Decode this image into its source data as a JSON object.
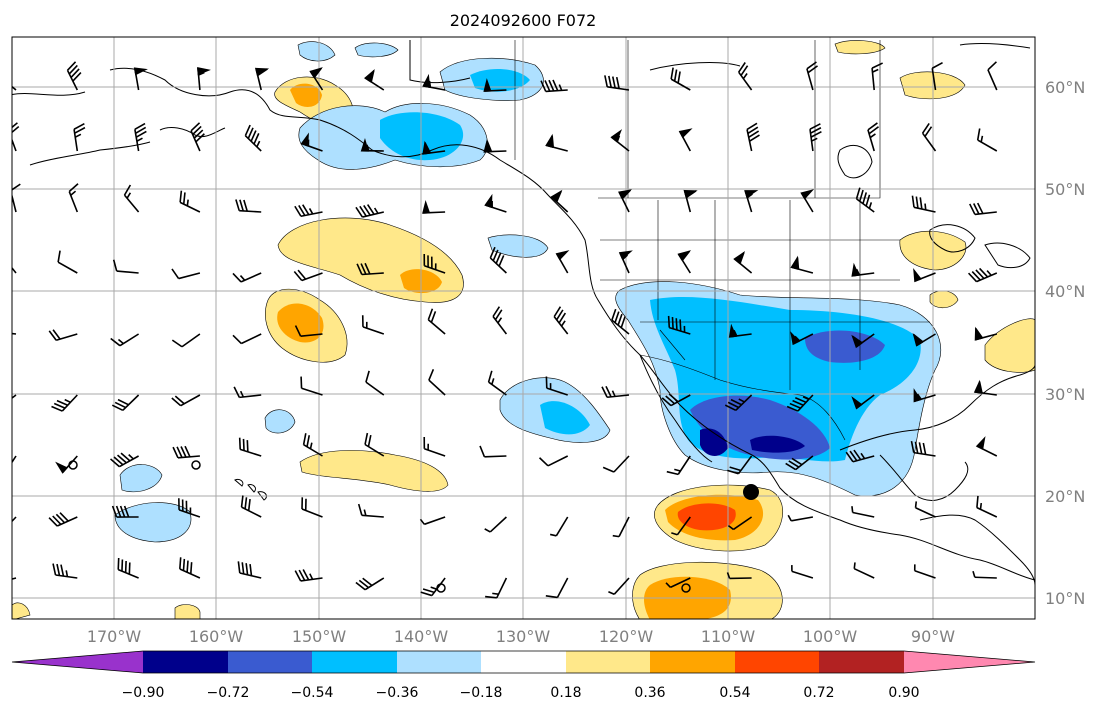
{
  "title": "2024092600 F072",
  "lat_labels": [
    "60°N",
    "50°N",
    "40°N",
    "30°N",
    "20°N",
    "10°N"
  ],
  "lon_labels": [
    "170°W",
    "160°W",
    "150°W",
    "140°W",
    "130°W",
    "120°W",
    "110°W",
    "100°W",
    "90°W"
  ],
  "colorbar": {
    "tick_labels": [
      "−0.90",
      "−0.72",
      "−0.54",
      "−0.36",
      "−0.18",
      "0.18",
      "0.36",
      "0.54",
      "0.72",
      "0.90"
    ],
    "colors": [
      "#9932cc",
      "#00008b",
      "#3a5bd0",
      "#00bfff",
      "#aee0ff",
      "#ffffff",
      "#ffe88a",
      "#ffa500",
      "#ff4500",
      "#b22222",
      "#ff88b0"
    ]
  },
  "colors": {
    "grid": "#a9a9a9",
    "coast": "#000000",
    "state_borders": "#000000"
  },
  "markers": {
    "storm_center": "black filled circle"
  }
}
